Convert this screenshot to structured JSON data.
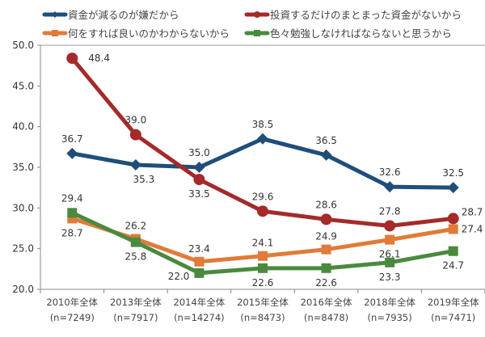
{
  "chart_data": {
    "type": "line",
    "title": "",
    "xlabel": "",
    "ylabel": "",
    "ylim": [
      20,
      50
    ],
    "yticks": [
      "20.0",
      "25.0",
      "30.0",
      "35.0",
      "40.0",
      "45.0",
      "50.0"
    ],
    "grid": false,
    "legend_placement": "top",
    "categories": [
      [
        "2010年全体",
        "(n=7249)"
      ],
      [
        "2013年全体",
        "(n=7917)"
      ],
      [
        "2014年全体",
        "(n=14274)"
      ],
      [
        "2015年全体",
        "(n=8473)"
      ],
      [
        "2016年全体",
        "(n=8478)"
      ],
      [
        "2018年全体",
        "(n=7935)"
      ],
      [
        "2019年全体",
        "(n=7471)"
      ]
    ],
    "series": [
      {
        "name": "資金が減るのが嫌だから",
        "color": "#1f4e79",
        "marker": "diamond",
        "values": [
          36.7,
          35.3,
          35.0,
          38.5,
          36.5,
          32.6,
          32.5
        ]
      },
      {
        "name": "投資するだけのまとまった資金がないから",
        "color": "#a52a2a",
        "marker": "circle",
        "values": [
          48.4,
          39.0,
          33.5,
          29.6,
          28.6,
          27.8,
          28.7
        ]
      },
      {
        "name": "何をすれば良いのかわからないから",
        "color": "#e07b39",
        "marker": "square",
        "values": [
          28.7,
          26.2,
          23.4,
          24.1,
          24.9,
          26.1,
          27.4
        ]
      },
      {
        "name": "色々勉強しなければならないと思うから",
        "color": "#4a8a3f",
        "marker": "square",
        "values": [
          29.4,
          25.8,
          22.0,
          22.6,
          22.6,
          23.3,
          24.7
        ]
      }
    ]
  }
}
